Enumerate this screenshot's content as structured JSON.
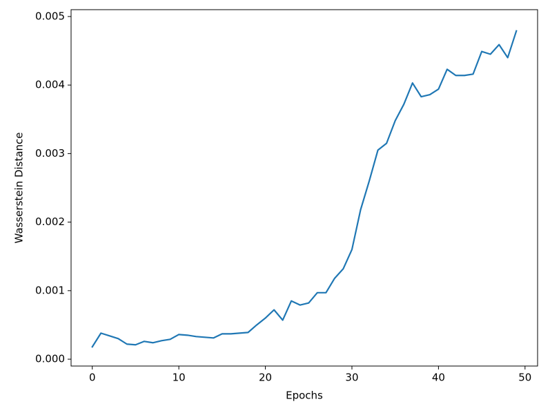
{
  "chart_data": {
    "type": "line",
    "xlabel": "Epochs",
    "ylabel": "Wasserstein Distance",
    "x": [
      0,
      1,
      2,
      3,
      4,
      5,
      6,
      7,
      8,
      9,
      10,
      11,
      12,
      13,
      14,
      15,
      16,
      17,
      18,
      19,
      20,
      21,
      22,
      23,
      24,
      25,
      26,
      27,
      28,
      29,
      30,
      31,
      32,
      33,
      34,
      35,
      36,
      37,
      38,
      39,
      40,
      41,
      42,
      43,
      44,
      45,
      46,
      47,
      48,
      49
    ],
    "series": [
      {
        "color": "#1f77b4",
        "values": [
          0.00018,
          0.00038,
          0.00034,
          0.0003,
          0.00022,
          0.00021,
          0.00026,
          0.00024,
          0.00027,
          0.00029,
          0.00036,
          0.00035,
          0.00033,
          0.00032,
          0.00031,
          0.00037,
          0.00037,
          0.00038,
          0.00039,
          0.0005,
          0.0006,
          0.00072,
          0.00057,
          0.00085,
          0.00079,
          0.00082,
          0.00097,
          0.00097,
          0.00118,
          0.00132,
          0.0016,
          0.00218,
          0.0026,
          0.00305,
          0.00315,
          0.00348,
          0.00372,
          0.00403,
          0.00383,
          0.00386,
          0.00394,
          0.00423,
          0.00414,
          0.00414,
          0.00416,
          0.00449,
          0.00445,
          0.00459,
          0.0044,
          0.00479
        ]
      }
    ],
    "xlim": [
      -2.45,
      51.45
    ],
    "xticks": [
      0,
      10,
      20,
      30,
      40,
      50
    ],
    "ylim": [
      -0.0001,
      0.0051
    ],
    "yticks": [
      {
        "value": 0,
        "label": "0.000"
      },
      {
        "value": 0.001,
        "label": "0.001"
      },
      {
        "value": 0.002,
        "label": "0.002"
      },
      {
        "value": 0.003,
        "label": "0.003"
      },
      {
        "value": 0.004,
        "label": "0.004"
      },
      {
        "value": 0.005,
        "label": "0.005"
      }
    ],
    "grid": false
  }
}
